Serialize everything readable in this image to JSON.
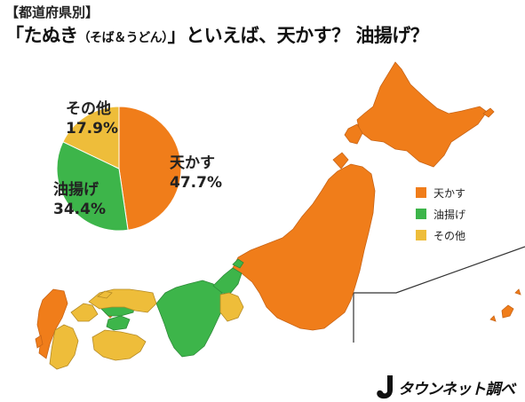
{
  "header": {
    "category": "【都道府県別】",
    "title_part1": "「たぬき",
    "title_small": "（そば＆うどん）",
    "title_part2": "」といえば、天かす？ 油揚げ？"
  },
  "colors": {
    "tenkasu": "#f07d1a",
    "aburaage": "#3db54a",
    "other": "#eebd3a",
    "border": "#c86416"
  },
  "chart_data": {
    "type": "pie",
    "categories": [
      "天かす",
      "油揚げ",
      "その他"
    ],
    "values": [
      47.7,
      34.4,
      17.9
    ],
    "value_labels": [
      "47.7%",
      "34.4%",
      "17.9%"
    ],
    "legend": [
      "天かす",
      "油揚げ",
      "その他"
    ],
    "legend_placement": "right"
  },
  "brand": {
    "name": "タウンネット調べ",
    "logo_icon": "j-logo-icon"
  }
}
